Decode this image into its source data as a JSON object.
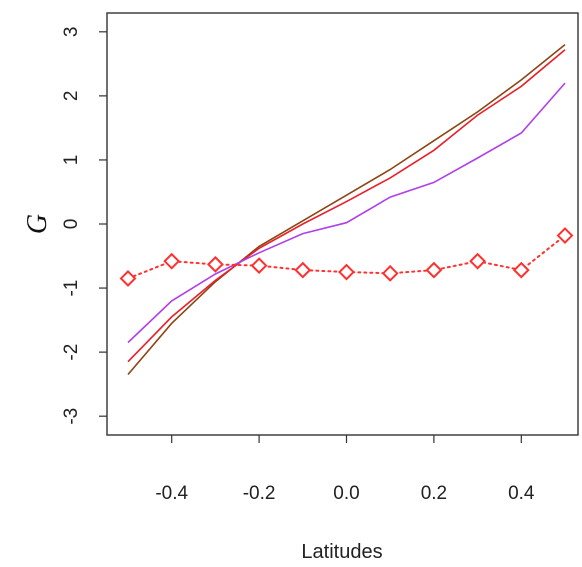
{
  "chart_data": {
    "type": "line",
    "xlabel": "Latitudes",
    "ylabel": "G",
    "xlim": [
      -0.5,
      0.5
    ],
    "ylim": [
      -3.2,
      3.2
    ],
    "x_ticks": [
      -0.4,
      -0.2,
      0.0,
      0.2,
      0.4
    ],
    "x_tick_labels": [
      "-0.4",
      "-0.2",
      "0.0",
      "0.2",
      "0.4"
    ],
    "y_ticks": [
      -3,
      -2,
      -1,
      0,
      1,
      2,
      3
    ],
    "y_tick_labels": [
      "-3",
      "-2",
      "-1",
      "0",
      "1",
      "2",
      "3"
    ],
    "grid": false,
    "x": [
      -0.5,
      -0.4,
      -0.3,
      -0.2,
      -0.1,
      0.0,
      0.1,
      0.2,
      0.3,
      0.4,
      0.5
    ],
    "series": [
      {
        "color": "#8b4513",
        "style": "solid",
        "values": [
          -2.35,
          -1.55,
          -0.9,
          -0.35,
          0.05,
          0.45,
          0.85,
          1.3,
          1.75,
          2.25,
          2.8
        ]
      },
      {
        "color": "#e8202a",
        "style": "solid",
        "values": [
          -2.15,
          -1.45,
          -0.88,
          -0.38,
          0.0,
          0.35,
          0.72,
          1.15,
          1.7,
          2.15,
          2.72
        ]
      },
      {
        "color": "#b040e8",
        "style": "solid",
        "values": [
          -1.85,
          -1.2,
          -0.78,
          -0.45,
          -0.15,
          0.02,
          0.42,
          0.65,
          1.03,
          1.42,
          2.2
        ]
      },
      {
        "color": "#ff3030",
        "style": "dotted",
        "marker": "diamond",
        "values": [
          -0.85,
          -0.58,
          -0.63,
          -0.65,
          -0.72,
          -0.75,
          -0.77,
          -0.72,
          -0.58,
          -0.72,
          -0.18
        ]
      }
    ]
  }
}
